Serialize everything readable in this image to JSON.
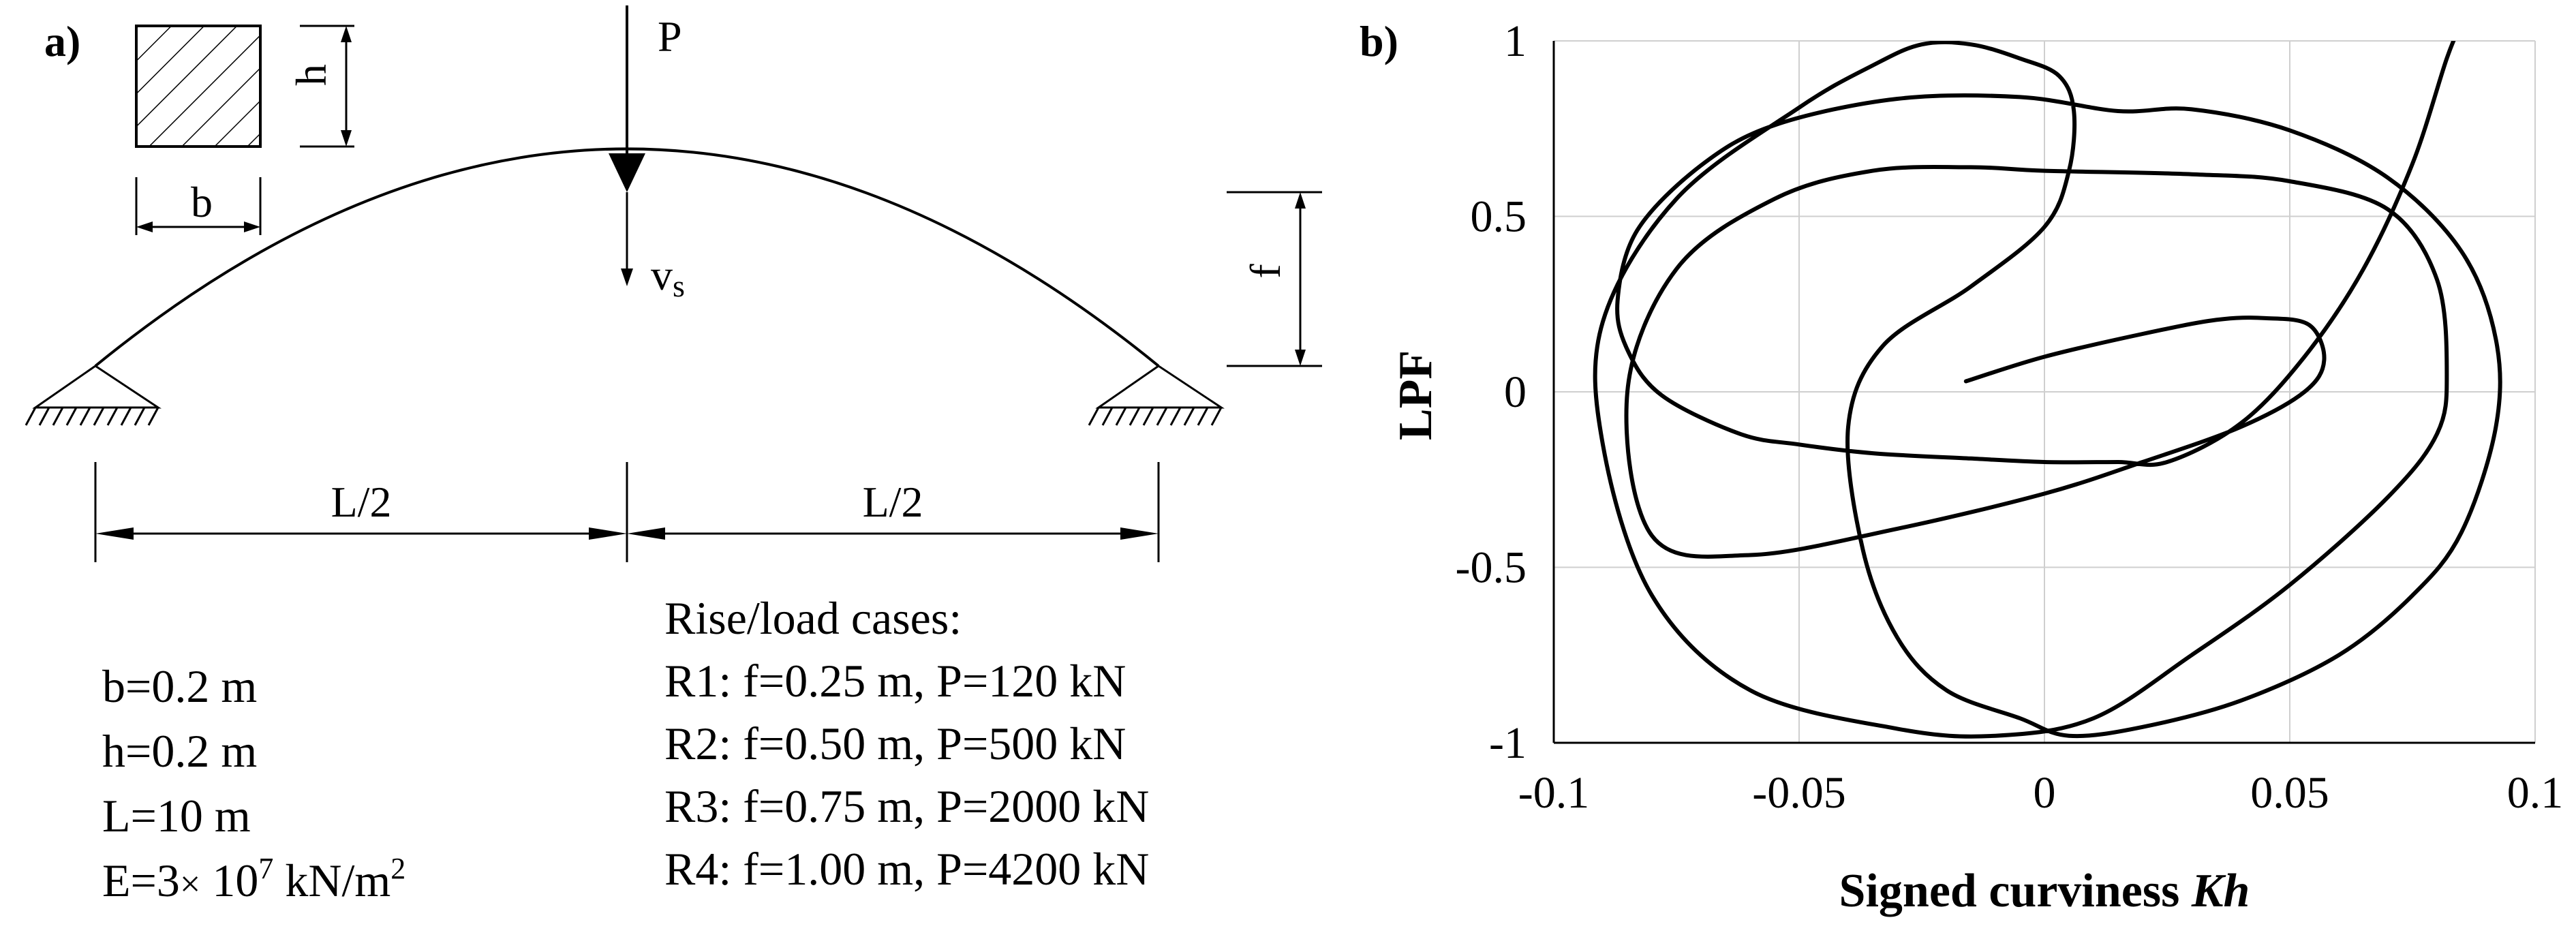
{
  "panel_a": {
    "label": "a)",
    "section": {
      "h_label": "h",
      "b_label": "b"
    },
    "arch": {
      "load_label": "P",
      "deflection_label": "v",
      "deflection_sub": "s",
      "rise_label": "f",
      "half_span_left": "L/2",
      "half_span_right": "L/2"
    },
    "properties": [
      {
        "text": "b=0.2 m"
      },
      {
        "text": "h=0.2 m"
      },
      {
        "text": "L=10 m"
      },
      {
        "pre": "E=3",
        "times": "×",
        "base": " 10",
        "exp": "7",
        "unit": " kN/m",
        "unit_exp": "2"
      }
    ],
    "cases_title": "Rise/load cases:",
    "cases": [
      "R1: f=0.25 m, P=120 kN",
      "R2: f=0.50 m, P=500 kN",
      "R3: f=0.75 m, P=2000 kN",
      "R4: f=1.00 m, P=4200 kN"
    ]
  },
  "panel_b": {
    "label": "b)",
    "chart_data": {
      "type": "line",
      "xlabel_main": "Signed curviness ",
      "xlabel_symbol": "Kh",
      "ylabel": "LPF",
      "xlim": [
        -0.1,
        0.1
      ],
      "ylim": [
        -1,
        1
      ],
      "xticks": [
        -0.1,
        -0.05,
        0,
        0.05,
        0.1
      ],
      "yticks": [
        1,
        0.5,
        0,
        -0.5,
        -1
      ],
      "xtick_labels": [
        "-0.1",
        "-0.05",
        "0",
        "0.05",
        "0.1"
      ],
      "ytick_labels": [
        "1",
        "0.5",
        "0",
        "-0.5",
        "-1"
      ],
      "grid": true,
      "series": [
        {
          "points": [
            [
              -0.016,
              0.03
            ],
            [
              0.0,
              0.1
            ],
            [
              0.02,
              0.165
            ],
            [
              0.035,
              0.205
            ],
            [
              0.045,
              0.21
            ],
            [
              0.054,
              0.19
            ],
            [
              0.057,
              0.09
            ],
            [
              0.053,
              0.0
            ],
            [
              0.04,
              -0.1
            ],
            [
              0.02,
              -0.2
            ],
            [
              0.0,
              -0.29
            ],
            [
              -0.03,
              -0.39
            ],
            [
              -0.06,
              -0.465
            ],
            [
              -0.08,
              -0.41
            ],
            [
              -0.085,
              0.0
            ],
            [
              -0.075,
              0.35
            ],
            [
              -0.055,
              0.55
            ],
            [
              -0.035,
              0.63
            ],
            [
              -0.015,
              0.64
            ],
            [
              0.0,
              0.63
            ],
            [
              0.03,
              0.62
            ],
            [
              0.05,
              0.6
            ],
            [
              0.07,
              0.52
            ],
            [
              0.08,
              0.32
            ],
            [
              0.082,
              0.05
            ],
            [
              0.08,
              -0.12
            ],
            [
              0.07,
              -0.3
            ],
            [
              0.05,
              -0.55
            ],
            [
              0.03,
              -0.75
            ],
            [
              0.01,
              -0.93
            ],
            [
              -0.01,
              -0.98
            ],
            [
              -0.03,
              -0.96
            ],
            [
              -0.06,
              -0.85
            ],
            [
              -0.08,
              -0.58
            ],
            [
              -0.09,
              -0.15
            ],
            [
              -0.09,
              0.2
            ],
            [
              -0.075,
              0.55
            ],
            [
              -0.05,
              0.81
            ],
            [
              -0.035,
              0.93
            ],
            [
              -0.025,
              0.99
            ],
            [
              -0.015,
              0.99
            ],
            [
              -0.005,
              0.95
            ],
            [
              0.003,
              0.9
            ],
            [
              0.006,
              0.8
            ],
            [
              0.005,
              0.63
            ],
            [
              0.0,
              0.47
            ],
            [
              -0.015,
              0.3
            ],
            [
              -0.033,
              0.13
            ],
            [
              -0.04,
              -0.1
            ],
            [
              -0.037,
              -0.45
            ],
            [
              -0.03,
              -0.7
            ],
            [
              -0.02,
              -0.85
            ],
            [
              -0.005,
              -0.93
            ],
            [
              0.005,
              -0.98
            ],
            [
              0.02,
              -0.955
            ],
            [
              0.04,
              -0.88
            ],
            [
              0.06,
              -0.75
            ],
            [
              0.075,
              -0.58
            ],
            [
              0.085,
              -0.4
            ],
            [
              0.092,
              -0.1
            ],
            [
              0.092,
              0.15
            ],
            [
              0.085,
              0.4
            ],
            [
              0.07,
              0.61
            ],
            [
              0.05,
              0.745
            ],
            [
              0.03,
              0.805
            ],
            [
              0.015,
              0.8
            ],
            [
              -0.005,
              0.84
            ],
            [
              -0.03,
              0.835
            ],
            [
              -0.055,
              0.76
            ],
            [
              -0.07,
              0.645
            ],
            [
              -0.083,
              0.46
            ],
            [
              -0.087,
              0.26
            ],
            [
              -0.085,
              0.12
            ],
            [
              -0.078,
              -0.01
            ],
            [
              -0.062,
              -0.12
            ],
            [
              -0.05,
              -0.15
            ],
            [
              -0.035,
              -0.175
            ],
            [
              -0.015,
              -0.19
            ],
            [
              0.0,
              -0.2
            ],
            [
              0.015,
              -0.2
            ],
            [
              0.025,
              -0.2
            ],
            [
              0.04,
              -0.09
            ],
            [
              0.053,
              0.1
            ],
            [
              0.065,
              0.35
            ],
            [
              0.075,
              0.65
            ],
            [
              0.082,
              0.95
            ],
            [
              0.085,
              1.05
            ]
          ]
        }
      ]
    }
  }
}
